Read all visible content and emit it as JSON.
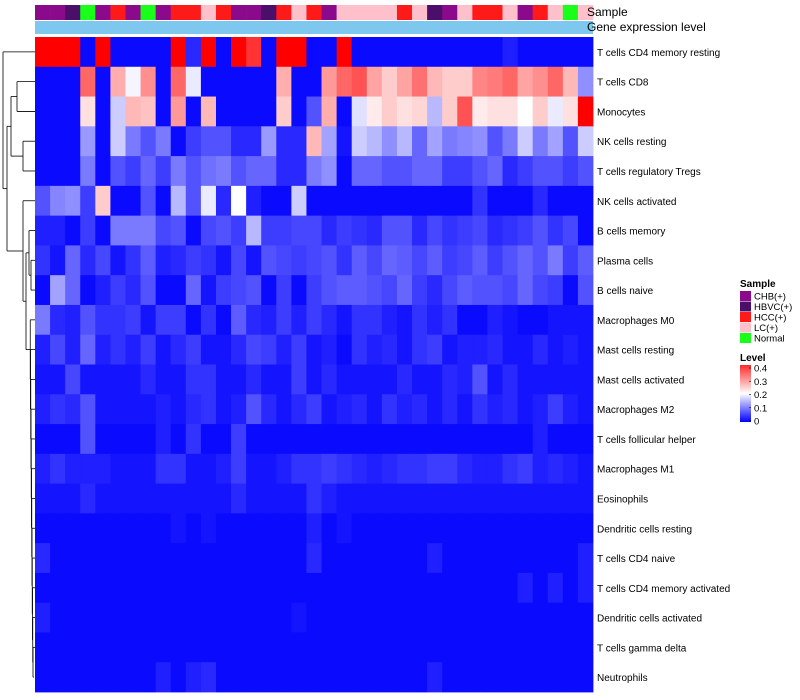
{
  "chart_data": {
    "type": "heatmap",
    "title": "",
    "annotation_titles": {
      "sample": "Sample",
      "gene": "Gene expression level"
    },
    "sample_groups": [
      "CHB(+)",
      "HBVC(+)",
      "HCC(+)",
      "LC(+)",
      "Normal"
    ],
    "sample_colors": {
      "CHB(+)": "#8B0A8B",
      "HBVC(+)": "#4B0E6B",
      "HCC(+)": "#FF1A1A",
      "LC(+)": "#FFC0CB",
      "Normal": "#1AFF1A"
    },
    "sample_annotation": [
      "CHB(+)",
      "CHB(+)",
      "HBVC(+)",
      "Normal",
      "CHB(+)",
      "HCC(+)",
      "CHB(+)",
      "Normal",
      "CHB(+)",
      "HCC(+)",
      "HCC(+)",
      "LC(+)",
      "HCC(+)",
      "CHB(+)",
      "CHB(+)",
      "HBVC(+)",
      "HCC(+)",
      "LC(+)",
      "HCC(+)",
      "CHB(+)",
      "LC(+)",
      "LC(+)",
      "LC(+)",
      "LC(+)",
      "HCC(+)",
      "LC(+)",
      "HBVC(+)",
      "CHB(+)",
      "LC(+)",
      "HCC(+)",
      "HCC(+)",
      "LC(+)",
      "CHB(+)",
      "HCC(+)",
      "LC(+)",
      "Normal",
      "LC(+)"
    ],
    "gene_annotation_color": "#7EC8F0",
    "legend": {
      "sample_title": "Sample",
      "level_title": "Level",
      "level_ticks": [
        0.4,
        0.3,
        0.2,
        0.1,
        0
      ],
      "level_tick_labels": [
        "0.4",
        "0.3",
        "0.2",
        "0.1",
        "0"
      ],
      "position": "right"
    },
    "color_scale": {
      "low": "#0000FF",
      "mid": "#FFFFFF",
      "high": "#FF0000",
      "min": 0,
      "mid_value": 0.25,
      "max": 0.5
    },
    "rows": [
      "T cells CD4 memory resting",
      "T cells CD8",
      "Monocytes",
      "NK cells resting",
      "T cells regulatory  Tregs",
      "NK cells activated",
      "B cells memory",
      "Plasma cells",
      "B cells naive",
      "Macrophages M0",
      "Mast cells resting",
      "Mast cells activated",
      "Macrophages M2",
      "T cells follicular helper",
      "Macrophages M1",
      "Eosinophils",
      "Dendritic cells resting",
      "T cells CD4 naive",
      "T cells CD4 memory activated",
      "Dendritic cells activated",
      "T cells gamma delta",
      "Neutrophils"
    ],
    "n_columns": 37,
    "values": [
      [
        0.5,
        0.5,
        0.5,
        0.01,
        0.5,
        0.01,
        0.01,
        0.01,
        0.01,
        0.5,
        0.04,
        0.5,
        0.01,
        0.5,
        0.45,
        0.01,
        0.5,
        0.5,
        0.01,
        0.01,
        0.5,
        0.01,
        0.01,
        0.01,
        0.01,
        0.01,
        0.01,
        0.01,
        0.01,
        0.01,
        0.01,
        0.03,
        0.01,
        0.01,
        0.01,
        0.01,
        0.01
      ],
      [
        0.01,
        0.01,
        0.01,
        0.4,
        0.01,
        0.33,
        0.24,
        0.36,
        0.01,
        0.4,
        0.23,
        0.01,
        0.01,
        0.01,
        0.01,
        0.01,
        0.33,
        0.01,
        0.01,
        0.35,
        0.4,
        0.42,
        0.34,
        0.3,
        0.34,
        0.39,
        0.32,
        0.3,
        0.3,
        0.37,
        0.38,
        0.4,
        0.34,
        0.36,
        0.4,
        0.32,
        0.14
      ],
      [
        0.01,
        0.01,
        0.01,
        0.28,
        0.01,
        0.2,
        0.32,
        0.31,
        0.01,
        0.35,
        0.01,
        0.32,
        0.01,
        0.01,
        0.01,
        0.01,
        0.3,
        0.01,
        0.08,
        0.33,
        0.01,
        0.22,
        0.27,
        0.3,
        0.28,
        0.29,
        0.18,
        0.3,
        0.42,
        0.27,
        0.28,
        0.28,
        0.25,
        0.3,
        0.23,
        0.28,
        0.5
      ],
      [
        0.01,
        0.01,
        0.01,
        0.15,
        0.01,
        0.2,
        0.12,
        0.08,
        0.12,
        0.01,
        0.06,
        0.08,
        0.08,
        0.04,
        0.04,
        0.15,
        0.04,
        0.04,
        0.32,
        0.16,
        0.02,
        0.2,
        0.18,
        0.14,
        0.18,
        0.1,
        0.16,
        0.12,
        0.13,
        0.14,
        0.08,
        0.12,
        0.2,
        0.12,
        0.16,
        0.08,
        0.2
      ],
      [
        0.01,
        0.01,
        0.01,
        0.12,
        0.01,
        0.08,
        0.06,
        0.1,
        0.06,
        0.12,
        0.08,
        0.11,
        0.12,
        0.08,
        0.1,
        0.1,
        0.04,
        0.04,
        0.12,
        0.14,
        0.01,
        0.1,
        0.1,
        0.08,
        0.08,
        0.1,
        0.1,
        0.06,
        0.06,
        0.08,
        0.1,
        0.04,
        0.06,
        0.08,
        0.08,
        0.06,
        0.08
      ],
      [
        0.08,
        0.13,
        0.14,
        0.06,
        0.3,
        0.01,
        0.01,
        0.08,
        0.01,
        0.18,
        0.08,
        0.23,
        0.04,
        0.25,
        0.03,
        0.01,
        0.01,
        0.2,
        0.01,
        0.01,
        0.01,
        0.01,
        0.01,
        0.01,
        0.01,
        0.01,
        0.01,
        0.01,
        0.01,
        0.05,
        0.01,
        0.01,
        0.01,
        0.04,
        0.01,
        0.01,
        0.01
      ],
      [
        0.03,
        0.03,
        0.01,
        0.06,
        0.01,
        0.12,
        0.12,
        0.12,
        0.07,
        0.08,
        0.01,
        0.07,
        0.08,
        0.06,
        0.18,
        0.06,
        0.06,
        0.07,
        0.07,
        0.04,
        0.06,
        0.05,
        0.04,
        0.08,
        0.08,
        0.04,
        0.07,
        0.05,
        0.06,
        0.07,
        0.04,
        0.05,
        0.06,
        0.08,
        0.05,
        0.07,
        0.01
      ],
      [
        0.05,
        0.02,
        0.1,
        0.04,
        0.07,
        0.02,
        0.05,
        0.09,
        0.03,
        0.04,
        0.06,
        0.05,
        0.02,
        0.07,
        0.02,
        0.08,
        0.07,
        0.06,
        0.07,
        0.08,
        0.05,
        0.09,
        0.07,
        0.1,
        0.09,
        0.07,
        0.09,
        0.06,
        0.07,
        0.09,
        0.06,
        0.08,
        0.1,
        0.08,
        0.12,
        0.06,
        0.09
      ],
      [
        0.01,
        0.16,
        0.1,
        0.01,
        0.03,
        0.06,
        0.04,
        0.08,
        0.01,
        0.01,
        0.1,
        0.02,
        0.06,
        0.07,
        0.08,
        0.01,
        0.06,
        0.01,
        0.06,
        0.08,
        0.09,
        0.09,
        0.08,
        0.07,
        0.1,
        0.06,
        0.04,
        0.07,
        0.09,
        0.08,
        0.08,
        0.07,
        0.1,
        0.07,
        0.06,
        0.01,
        0.08
      ],
      [
        0.12,
        0.04,
        0.03,
        0.08,
        0.05,
        0.05,
        0.06,
        0.02,
        0.06,
        0.06,
        0.01,
        0.05,
        0.01,
        0.09,
        0.04,
        0.03,
        0.06,
        0.03,
        0.06,
        0.04,
        0.02,
        0.05,
        0.05,
        0.03,
        0.02,
        0.05,
        0.03,
        0.05,
        0.01,
        0.01,
        0.03,
        0.02,
        0.01,
        0.01,
        0.02,
        0.02,
        0.02
      ],
      [
        0.03,
        0.07,
        0.03,
        0.1,
        0.03,
        0.05,
        0.03,
        0.06,
        0.02,
        0.04,
        0.06,
        0.02,
        0.02,
        0.04,
        0.07,
        0.06,
        0.03,
        0.06,
        0.02,
        0.03,
        0.01,
        0.05,
        0.03,
        0.04,
        0.02,
        0.05,
        0.06,
        0.02,
        0.03,
        0.03,
        0.04,
        0.02,
        0.02,
        0.04,
        0.02,
        0.03,
        0.02
      ],
      [
        0.02,
        0.02,
        0.07,
        0.02,
        0.02,
        0.02,
        0.02,
        0.04,
        0.02,
        0.02,
        0.05,
        0.05,
        0.02,
        0.02,
        0.04,
        0.02,
        0.02,
        0.06,
        0.02,
        0.04,
        0.02,
        0.02,
        0.02,
        0.02,
        0.04,
        0.02,
        0.02,
        0.04,
        0.03,
        0.08,
        0.02,
        0.04,
        0.02,
        0.02,
        0.02,
        0.02,
        0.02
      ],
      [
        0.03,
        0.05,
        0.04,
        0.08,
        0.02,
        0.02,
        0.02,
        0.02,
        0.03,
        0.02,
        0.04,
        0.05,
        0.02,
        0.03,
        0.08,
        0.04,
        0.02,
        0.04,
        0.06,
        0.02,
        0.03,
        0.04,
        0.02,
        0.05,
        0.03,
        0.04,
        0.02,
        0.04,
        0.02,
        0.05,
        0.03,
        0.04,
        0.02,
        0.03,
        0.06,
        0.03,
        0.02
      ],
      [
        0.01,
        0.01,
        0.01,
        0.08,
        0.01,
        0.01,
        0.01,
        0.01,
        0.03,
        0.01,
        0.05,
        0.01,
        0.01,
        0.06,
        0.01,
        0.01,
        0.01,
        0.01,
        0.01,
        0.01,
        0.01,
        0.01,
        0.01,
        0.01,
        0.01,
        0.01,
        0.01,
        0.01,
        0.01,
        0.01,
        0.01,
        0.01,
        0.01,
        0.03,
        0.01,
        0.01,
        0.01
      ],
      [
        0.03,
        0.05,
        0.03,
        0.03,
        0.03,
        0.02,
        0.02,
        0.02,
        0.05,
        0.05,
        0.02,
        0.02,
        0.03,
        0.06,
        0.02,
        0.02,
        0.03,
        0.05,
        0.05,
        0.06,
        0.05,
        0.04,
        0.03,
        0.04,
        0.05,
        0.05,
        0.06,
        0.06,
        0.04,
        0.03,
        0.03,
        0.05,
        0.06,
        0.03,
        0.04,
        0.03,
        0.02
      ],
      [
        0.02,
        0.02,
        0.02,
        0.04,
        0.02,
        0.02,
        0.02,
        0.02,
        0.02,
        0.02,
        0.02,
        0.02,
        0.02,
        0.04,
        0.02,
        0.02,
        0.02,
        0.02,
        0.05,
        0.03,
        0.02,
        0.02,
        0.02,
        0.02,
        0.02,
        0.02,
        0.02,
        0.02,
        0.02,
        0.02,
        0.02,
        0.02,
        0.02,
        0.02,
        0.02,
        0.02,
        0.02
      ],
      [
        0.01,
        0.01,
        0.01,
        0.01,
        0.01,
        0.01,
        0.01,
        0.01,
        0.01,
        0.02,
        0.01,
        0.02,
        0.01,
        0.01,
        0.01,
        0.01,
        0.01,
        0.01,
        0.03,
        0.01,
        0.02,
        0.01,
        0.01,
        0.01,
        0.01,
        0.01,
        0.01,
        0.01,
        0.01,
        0.01,
        0.01,
        0.01,
        0.01,
        0.01,
        0.01,
        0.01,
        0.01
      ],
      [
        0.04,
        0.01,
        0.01,
        0.01,
        0.01,
        0.01,
        0.01,
        0.01,
        0.01,
        0.01,
        0.01,
        0.01,
        0.01,
        0.01,
        0.01,
        0.01,
        0.01,
        0.01,
        0.04,
        0.01,
        0.01,
        0.01,
        0.01,
        0.01,
        0.01,
        0.01,
        0.03,
        0.01,
        0.01,
        0.01,
        0.01,
        0.01,
        0.01,
        0.01,
        0.01,
        0.01,
        0.03
      ],
      [
        0.01,
        0.01,
        0.01,
        0.01,
        0.01,
        0.01,
        0.01,
        0.01,
        0.01,
        0.01,
        0.01,
        0.01,
        0.01,
        0.01,
        0.01,
        0.01,
        0.01,
        0.01,
        0.01,
        0.01,
        0.01,
        0.01,
        0.01,
        0.01,
        0.01,
        0.01,
        0.01,
        0.01,
        0.01,
        0.01,
        0.01,
        0.01,
        0.03,
        0.01,
        0.03,
        0.01,
        0.03
      ],
      [
        0.03,
        0.01,
        0.01,
        0.01,
        0.01,
        0.01,
        0.01,
        0.01,
        0.01,
        0.01,
        0.01,
        0.01,
        0.01,
        0.01,
        0.01,
        0.01,
        0.01,
        0.02,
        0.01,
        0.01,
        0.01,
        0.01,
        0.01,
        0.01,
        0.01,
        0.01,
        0.01,
        0.01,
        0.01,
        0.01,
        0.01,
        0.01,
        0.01,
        0.01,
        0.01,
        0.01,
        0.01
      ],
      [
        0.01,
        0.01,
        0.01,
        0.01,
        0.01,
        0.01,
        0.01,
        0.01,
        0.01,
        0.01,
        0.01,
        0.01,
        0.01,
        0.01,
        0.01,
        0.01,
        0.01,
        0.01,
        0.01,
        0.01,
        0.01,
        0.01,
        0.01,
        0.01,
        0.01,
        0.01,
        0.01,
        0.01,
        0.01,
        0.01,
        0.01,
        0.01,
        0.01,
        0.01,
        0.01,
        0.01,
        0.01
      ],
      [
        0.01,
        0.01,
        0.01,
        0.01,
        0.01,
        0.01,
        0.01,
        0.01,
        0.03,
        0.01,
        0.03,
        0.04,
        0.01,
        0.01,
        0.01,
        0.01,
        0.01,
        0.01,
        0.01,
        0.01,
        0.01,
        0.01,
        0.01,
        0.01,
        0.01,
        0.01,
        0.03,
        0.01,
        0.01,
        0.01,
        0.01,
        0.01,
        0.01,
        0.01,
        0.01,
        0.01,
        0.01
      ]
    ]
  }
}
